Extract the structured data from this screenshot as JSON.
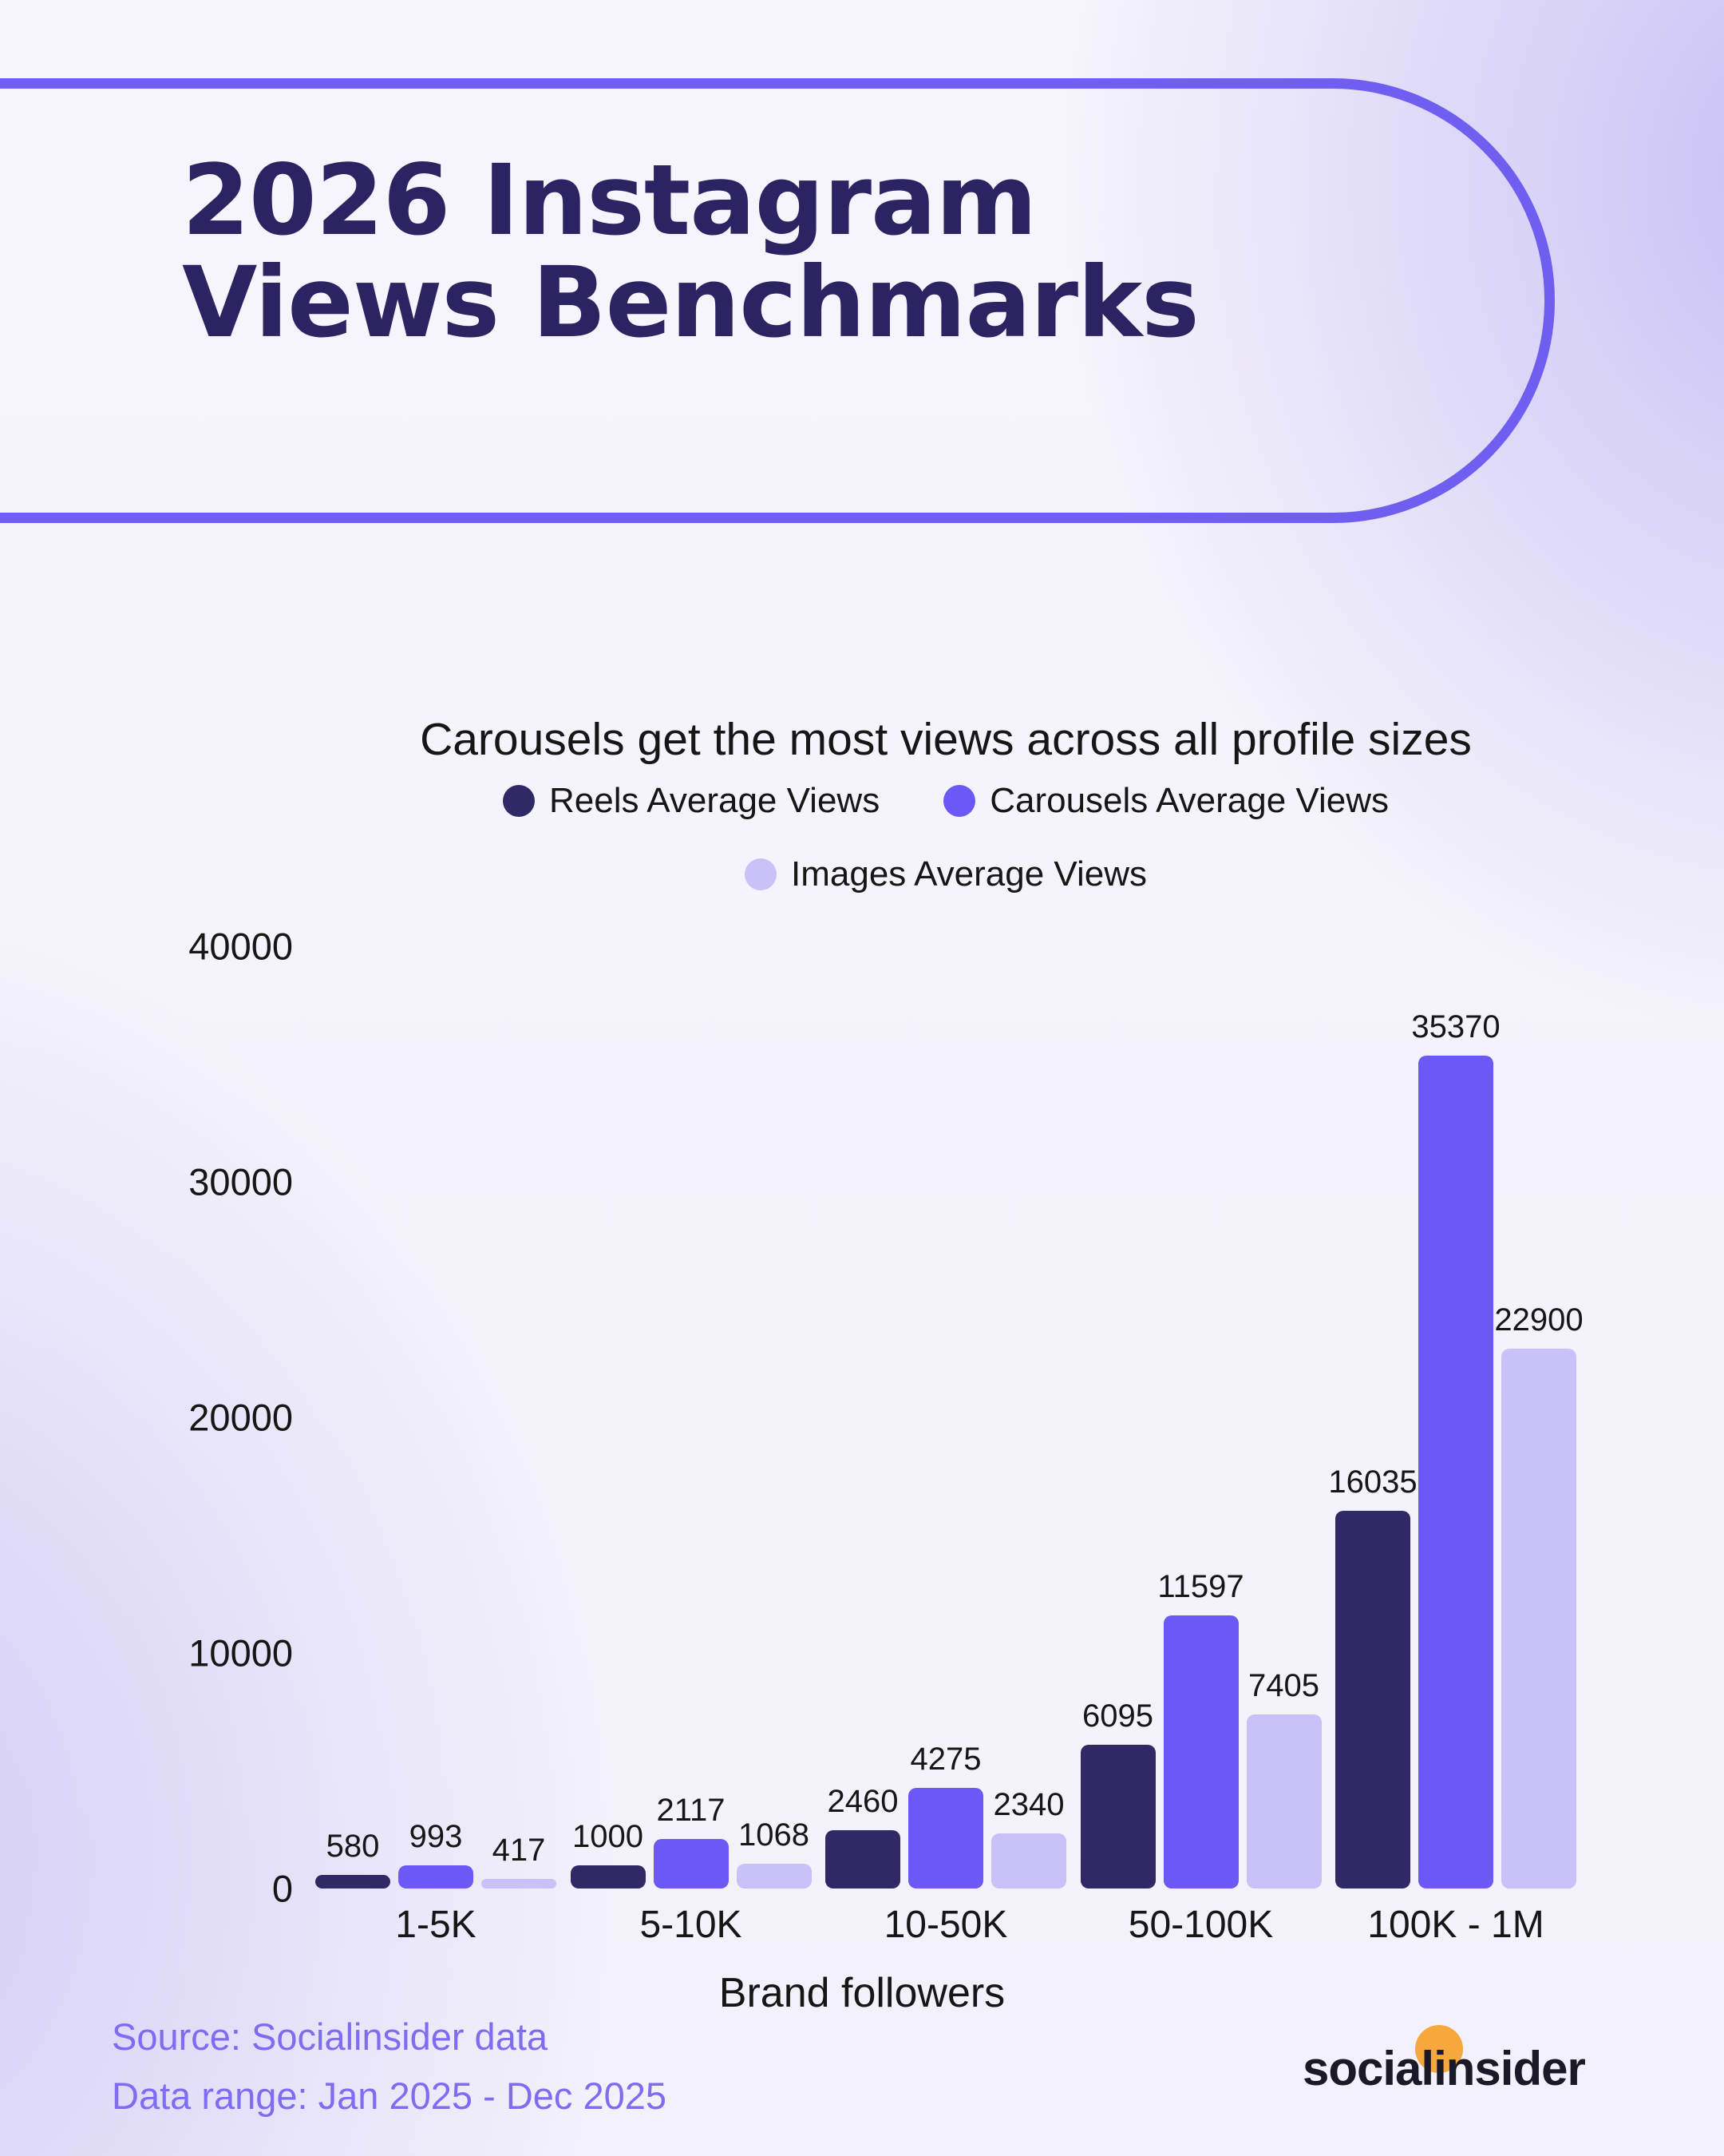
{
  "page": {
    "title_line1": "2026 Instagram",
    "title_line2": "Views Benchmarks"
  },
  "chart_data": {
    "type": "bar",
    "title": "Carousels get the most views across all profile sizes",
    "xlabel": "Brand followers",
    "ylabel": "",
    "ylim": [
      0,
      40000
    ],
    "yticks": [
      0,
      10000,
      20000,
      30000,
      40000
    ],
    "grid": false,
    "legend_position": "top-center",
    "categories": [
      "1-5K",
      "5-10K",
      "10-50K",
      "50-100K",
      "100K - 1M"
    ],
    "series": [
      {
        "name": "Reels Average Views",
        "color": "#2f2966",
        "values": [
          580,
          1000,
          2460,
          6095,
          16035
        ]
      },
      {
        "name": "Carousels Average Views",
        "color": "#6c59f5",
        "values": [
          993,
          2117,
          4275,
          11597,
          35370
        ]
      },
      {
        "name": "Images Average Views",
        "color": "#c8c2f8",
        "values": [
          417,
          1068,
          2340,
          7405,
          22900
        ]
      }
    ]
  },
  "footer": {
    "source_line1": "Source: Socialinsider data",
    "source_line2": "Data range: Jan 2025 - Dec 2025",
    "logo_text": "socialinsider"
  },
  "colors": {
    "outline": "#6f5ef0",
    "title_text": "#2c2363",
    "chart_text": "#161616",
    "footer_text": "#7e6cf2",
    "logo_text": "#191927",
    "logo_accent": "#f6a83c",
    "background_base": "#f4f2fb",
    "background_corner": "#c9c1f3"
  }
}
